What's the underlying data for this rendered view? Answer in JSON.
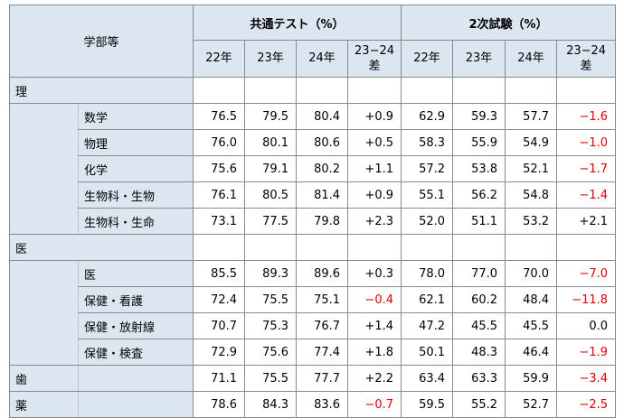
{
  "header": {
    "department": "学部等",
    "common_test": "共通テスト（%）",
    "secondary_exam": "2次試験（%）",
    "years": [
      "22年",
      "23年",
      "24年"
    ],
    "diff_line1": "23−24",
    "diff_line2": "差"
  },
  "groups": [
    {
      "name": "理",
      "rows": [
        {
          "dept": "数学",
          "ct": [
            "76.5",
            "79.5",
            "80.4",
            "+0.9"
          ],
          "se": [
            "62.9",
            "59.3",
            "57.7",
            "−1.6"
          ]
        },
        {
          "dept": "物理",
          "ct": [
            "76.0",
            "80.1",
            "80.6",
            "+0.5"
          ],
          "se": [
            "58.3",
            "55.9",
            "54.9",
            "−1.0"
          ]
        },
        {
          "dept": "化学",
          "ct": [
            "75.6",
            "79.1",
            "80.2",
            "+1.1"
          ],
          "se": [
            "57.2",
            "53.8",
            "52.1",
            "−1.7"
          ]
        },
        {
          "dept": "生物科・生物",
          "ct": [
            "76.1",
            "80.5",
            "81.4",
            "+0.9"
          ],
          "se": [
            "55.1",
            "56.2",
            "54.8",
            "−1.4"
          ]
        },
        {
          "dept": "生物科・生命",
          "ct": [
            "73.1",
            "77.5",
            "79.8",
            "+2.3"
          ],
          "se": [
            "52.0",
            "51.1",
            "53.2",
            "+2.1"
          ]
        }
      ]
    },
    {
      "name": "医",
      "rows": [
        {
          "dept": "医",
          "ct": [
            "85.5",
            "89.3",
            "89.6",
            "+0.3"
          ],
          "se": [
            "78.0",
            "77.0",
            "70.0",
            "−7.0"
          ]
        },
        {
          "dept": "保健・看護",
          "ct": [
            "72.4",
            "75.5",
            "75.1",
            "−0.4"
          ],
          "se": [
            "62.1",
            "60.2",
            "48.4",
            "−11.8"
          ]
        },
        {
          "dept": "保健・放射線",
          "ct": [
            "70.7",
            "75.3",
            "76.7",
            "+1.4"
          ],
          "se": [
            "47.2",
            "45.5",
            "45.5",
            "0.0"
          ]
        },
        {
          "dept": "保健・検査",
          "ct": [
            "72.9",
            "75.6",
            "77.4",
            "+1.8"
          ],
          "se": [
            "50.1",
            "48.3",
            "46.4",
            "−1.9"
          ]
        }
      ]
    }
  ],
  "singles": [
    {
      "name": "歯",
      "ct": [
        "71.1",
        "75.5",
        "77.7",
        "+2.2"
      ],
      "se": [
        "63.4",
        "63.3",
        "59.9",
        "−3.4"
      ]
    },
    {
      "name": "薬",
      "ct": [
        "78.6",
        "84.3",
        "83.6",
        "−0.7"
      ],
      "se": [
        "59.5",
        "55.2",
        "52.7",
        "−2.5"
      ]
    }
  ]
}
